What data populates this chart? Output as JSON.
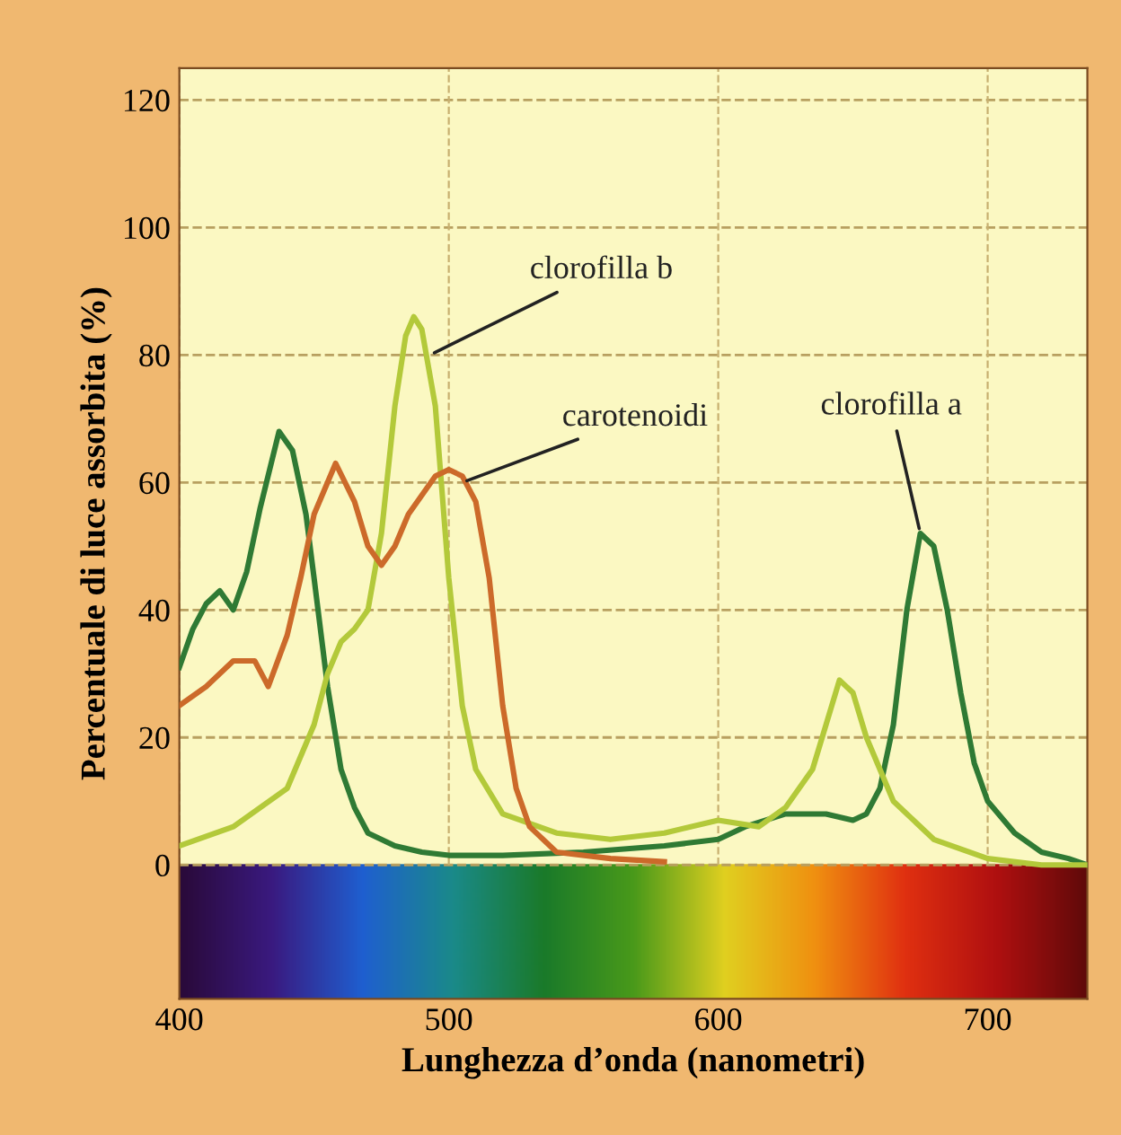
{
  "chart_data": {
    "type": "line",
    "xlabel": "Lunghezza d’onda (nanometri)",
    "ylabel": "Percentuale di luce assorbita (%)",
    "xlim": [
      400,
      737
    ],
    "ylim": [
      -21,
      125
    ],
    "xticks": [
      400,
      500,
      600,
      700
    ],
    "yticks": [
      0,
      20,
      40,
      60,
      80,
      100,
      120
    ],
    "annotations": [
      {
        "text": "clorofilla b",
        "x": 493,
        "y": 80
      },
      {
        "text": "carotenoidi",
        "x": 505,
        "y": 60
      },
      {
        "text": "clorofilla a",
        "x": 675,
        "y": 52
      }
    ],
    "grid": true,
    "line_style": "solid",
    "marker": "none",
    "legend": false,
    "series": [
      {
        "color": "#2f7a34",
        "x": [
          400,
          405,
          410,
          415,
          420,
          425,
          430,
          437,
          442,
          447,
          450,
          455,
          460,
          465,
          470,
          480,
          490,
          500,
          520,
          550,
          580,
          600,
          610,
          625,
          640,
          650,
          655,
          660,
          665,
          670,
          675,
          680,
          685,
          690,
          695,
          700,
          710,
          720,
          730,
          737
        ],
        "values": [
          31,
          37,
          41,
          43,
          40,
          46,
          56,
          68,
          65,
          55,
          45,
          28,
          15,
          9,
          5,
          3,
          2,
          1.5,
          1.5,
          2,
          3,
          4,
          6,
          8,
          8,
          7,
          8,
          12,
          22,
          40,
          52,
          50,
          40,
          27,
          16,
          10,
          5,
          2,
          1,
          0
        ]
      },
      {
        "color": "#b3c93a",
        "x": [
          400,
          420,
          440,
          450,
          455,
          460,
          465,
          470,
          475,
          480,
          484,
          487,
          490,
          495,
          500,
          505,
          510,
          520,
          540,
          560,
          580,
          600,
          615,
          625,
          635,
          640,
          645,
          650,
          655,
          665,
          680,
          700,
          720,
          737
        ],
        "values": [
          3,
          6,
          12,
          22,
          30,
          35,
          37,
          40,
          52,
          72,
          83,
          86,
          84,
          72,
          45,
          25,
          15,
          8,
          5,
          4,
          5,
          7,
          6,
          9,
          15,
          22,
          29,
          27,
          20,
          10,
          4,
          1,
          0,
          0
        ]
      },
      {
        "color": "#cc6a2a",
        "x": [
          400,
          410,
          420,
          428,
          433,
          440,
          445,
          450,
          458,
          465,
          470,
          475,
          480,
          485,
          490,
          495,
          500,
          505,
          510,
          515,
          520,
          525,
          530,
          540,
          560,
          580
        ],
        "values": [
          25,
          28,
          32,
          32,
          28,
          36,
          45,
          55,
          63,
          57,
          50,
          47,
          50,
          55,
          58,
          61,
          62,
          61,
          57,
          45,
          25,
          12,
          6,
          2,
          1,
          0.5
        ]
      }
    ]
  }
}
